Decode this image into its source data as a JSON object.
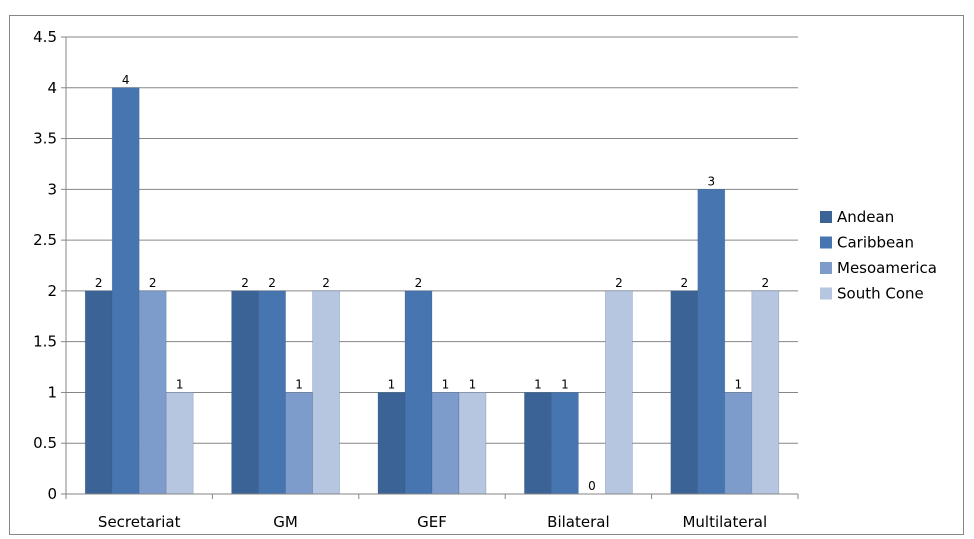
{
  "chart_data": {
    "type": "bar",
    "title": "",
    "xlabel": "",
    "ylabel": "",
    "ylim": [
      0,
      4.5
    ],
    "yticks": [
      0,
      0.5,
      1,
      1.5,
      2,
      2.5,
      3,
      3.5,
      4,
      4.5
    ],
    "ytick_labels": [
      "0",
      "0.5",
      "1",
      "1.5",
      "2",
      "2.5",
      "3",
      "3.5",
      "4",
      "4.5"
    ],
    "grid": true,
    "legend_position": "right",
    "categories": [
      "Secretariat",
      "GM",
      "GEF",
      "Bilateral",
      "Multilateral"
    ],
    "series": [
      {
        "name": "Andean",
        "color": "#3B6396",
        "values": [
          2,
          2,
          1,
          1,
          2
        ],
        "labels": [
          "2",
          "2",
          "1",
          "1",
          "2"
        ]
      },
      {
        "name": "Caribbean",
        "color": "#4775B0",
        "values": [
          4,
          2,
          2,
          1,
          3
        ],
        "labels": [
          "4",
          "2",
          "2",
          "1",
          "3"
        ]
      },
      {
        "name": "Mesoamerica",
        "color": "#7D9CCB",
        "values": [
          2,
          1,
          1,
          0,
          1
        ],
        "labels": [
          "2",
          "1",
          "1",
          "0",
          "1"
        ]
      },
      {
        "name": "South Cone",
        "color": "#B6C5E0",
        "values": [
          1,
          2,
          1,
          2,
          2
        ],
        "labels": [
          "1",
          "2",
          "1",
          "2",
          "2"
        ]
      }
    ]
  }
}
